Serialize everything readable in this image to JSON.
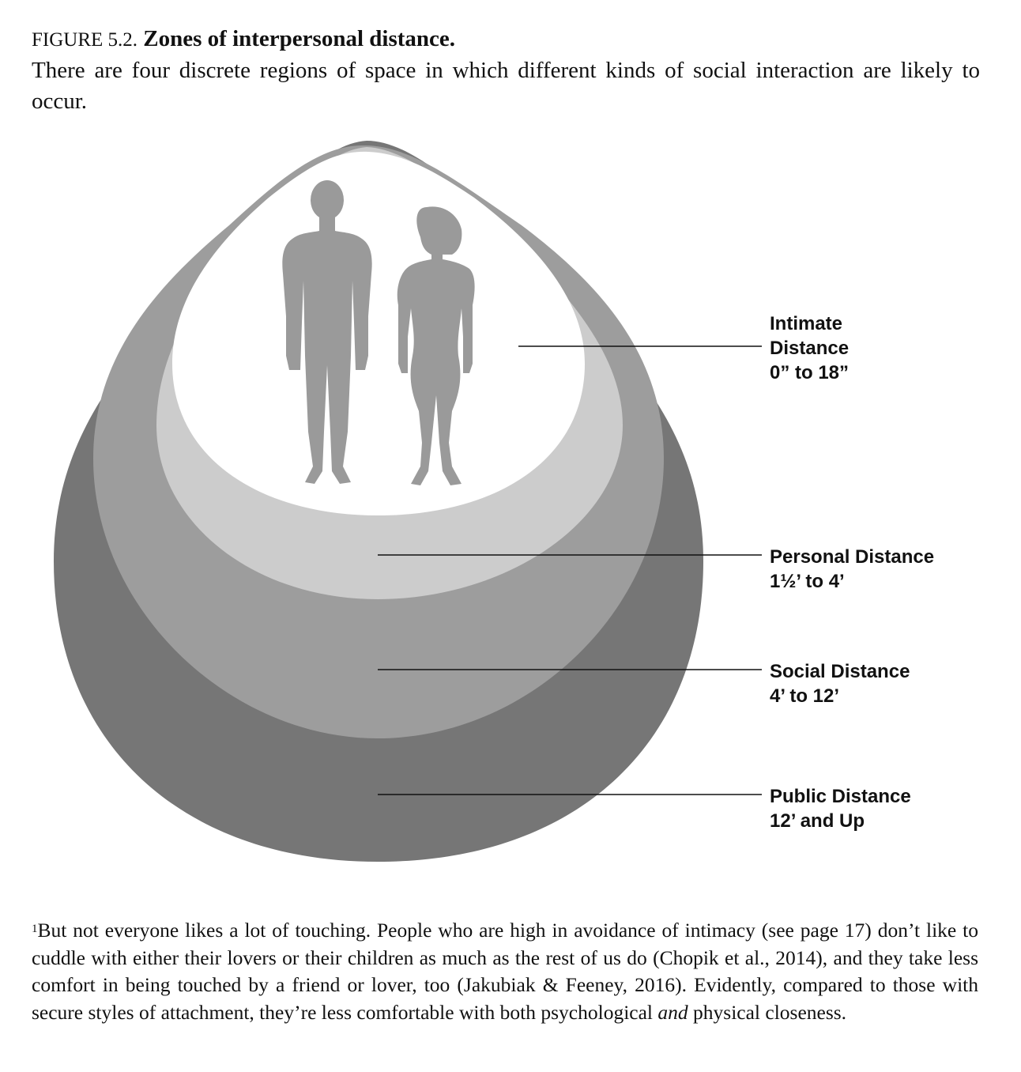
{
  "caption": {
    "figure_number": "FIGURE 5.2.",
    "title": "Zones of interpersonal distance.",
    "body": "There are four discrete regions of space in which different kinds of social interaction are likely to occur."
  },
  "zones": [
    {
      "name": "Intimate",
      "name2": "Distance",
      "range": "0” to 18”",
      "color": "#ffffff"
    },
    {
      "name": "Personal Distance",
      "range": "1½’ to 4’",
      "color": "#cccccc"
    },
    {
      "name": "Social Distance",
      "range": "4’ to 12’",
      "color": "#9d9d9d"
    },
    {
      "name": "Public Distance",
      "range": "12’ and Up",
      "color": "#767676"
    }
  ],
  "footnote": {
    "marker": "1",
    "text_before": "But not everyone likes a lot of touching. People who are high in avoidance of intimacy (see page 17) don’t like to cuddle with either their lovers or their children as much as the rest of us do (Chopik et al., 2014), and they take less comfort in being touched by a friend or lover, too (Jakubiak & Feeney, 2016). Evidently, compared to those with secure styles of attachment, they’re less comfortable with both psychological ",
    "emphasis": "and",
    "text_after": " physical closeness."
  }
}
